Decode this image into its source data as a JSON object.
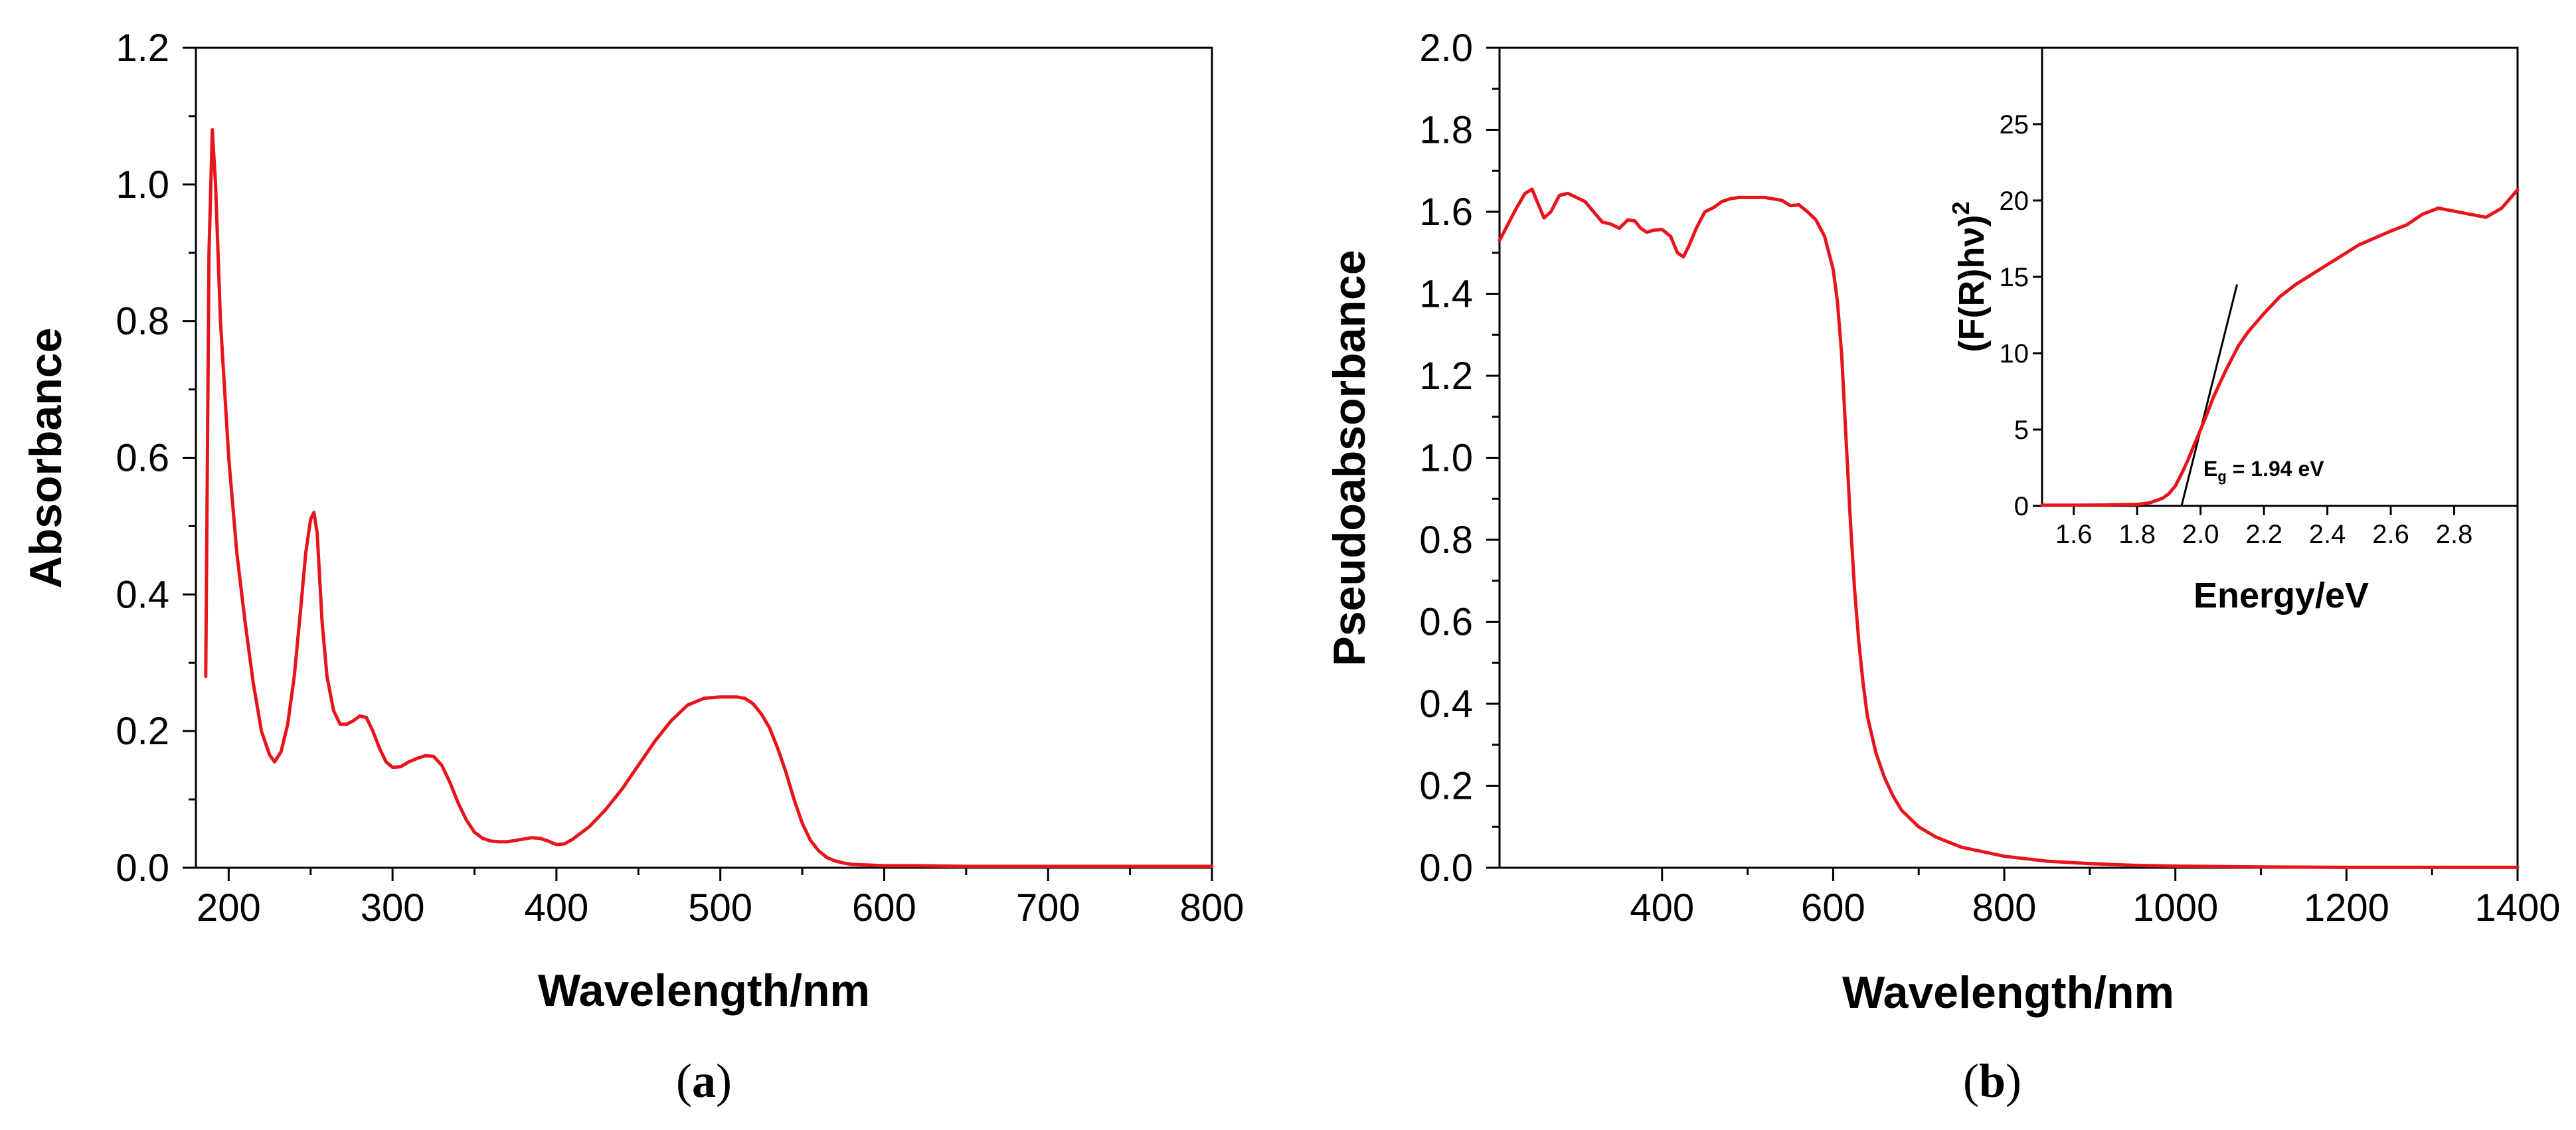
{
  "chart_data": [
    {
      "id": "a",
      "type": "line",
      "caption": "a",
      "title": "",
      "xlabel": "Wavelength/nm",
      "ylabel": "Absorbance",
      "xlim": [
        180,
        800
      ],
      "ylim": [
        0.0,
        1.2
      ],
      "xticks": [
        200,
        300,
        400,
        500,
        600,
        700,
        800
      ],
      "yticks": [
        0.0,
        0.2,
        0.4,
        0.6,
        0.8,
        1.0,
        1.2
      ],
      "xtick_labels": [
        "200",
        "300",
        "400",
        "500",
        "600",
        "700",
        "800"
      ],
      "ytick_labels": [
        "0.0",
        "0.2",
        "0.4",
        "0.6",
        "0.8",
        "1.0",
        "1.2"
      ],
      "grid": false,
      "series": [
        {
          "name": "Absorbance",
          "color": "#e8141b",
          "x": [
            186,
            188,
            190,
            192,
            195,
            200,
            205,
            210,
            215,
            220,
            225,
            228,
            232,
            236,
            240,
            244,
            247,
            250,
            252,
            254,
            257,
            260,
            264,
            268,
            272,
            276,
            280,
            284,
            288,
            292,
            296,
            300,
            305,
            310,
            315,
            320,
            325,
            330,
            335,
            340,
            345,
            350,
            355,
            360,
            365,
            370,
            375,
            380,
            385,
            390,
            395,
            400,
            405,
            410,
            420,
            430,
            440,
            450,
            460,
            470,
            480,
            490,
            500,
            510,
            515,
            520,
            525,
            530,
            535,
            540,
            545,
            550,
            555,
            560,
            565,
            570,
            575,
            580,
            590,
            600,
            620,
            650,
            700,
            750,
            800
          ],
          "y": [
            0.28,
            0.9,
            1.08,
            1.0,
            0.8,
            0.6,
            0.46,
            0.36,
            0.27,
            0.2,
            0.165,
            0.155,
            0.17,
            0.21,
            0.28,
            0.38,
            0.46,
            0.51,
            0.52,
            0.49,
            0.36,
            0.28,
            0.23,
            0.21,
            0.21,
            0.215,
            0.222,
            0.22,
            0.2,
            0.175,
            0.155,
            0.147,
            0.148,
            0.155,
            0.16,
            0.164,
            0.163,
            0.15,
            0.125,
            0.095,
            0.07,
            0.052,
            0.043,
            0.039,
            0.038,
            0.038,
            0.04,
            0.042,
            0.044,
            0.043,
            0.039,
            0.034,
            0.035,
            0.042,
            0.06,
            0.085,
            0.115,
            0.15,
            0.185,
            0.215,
            0.238,
            0.248,
            0.25,
            0.25,
            0.248,
            0.24,
            0.225,
            0.205,
            0.175,
            0.14,
            0.1,
            0.065,
            0.04,
            0.025,
            0.015,
            0.01,
            0.007,
            0.005,
            0.004,
            0.003,
            0.003,
            0.002,
            0.002,
            0.002,
            0.002
          ]
        }
      ]
    },
    {
      "id": "b",
      "type": "line",
      "caption": "b",
      "title": "",
      "xlabel": "Wavelength/nm",
      "ylabel": "Pseudoabsorbance",
      "xlim": [
        210,
        1400
      ],
      "ylim": [
        0.0,
        2.0
      ],
      "xticks": [
        400,
        600,
        800,
        1000,
        1200,
        1400
      ],
      "yticks": [
        0.0,
        0.2,
        0.4,
        0.6,
        0.8,
        1.0,
        1.2,
        1.4,
        1.6,
        1.8,
        2.0
      ],
      "xtick_labels": [
        "400",
        "600",
        "800",
        "1000",
        "1200",
        "1400"
      ],
      "ytick_labels": [
        "0.0",
        "0.2",
        "0.4",
        "0.6",
        "0.8",
        "1.0",
        "1.2",
        "1.4",
        "1.6",
        "1.8",
        "2.0"
      ],
      "grid": false,
      "series": [
        {
          "name": "Pseudoabsorbance",
          "color": "#e8141b",
          "x": [
            210,
            220,
            230,
            240,
            248,
            255,
            262,
            270,
            280,
            290,
            300,
            310,
            320,
            330,
            340,
            350,
            360,
            368,
            375,
            382,
            390,
            400,
            410,
            418,
            425,
            432,
            440,
            450,
            460,
            470,
            480,
            490,
            500,
            520,
            540,
            550,
            560,
            570,
            580,
            590,
            600,
            605,
            610,
            615,
            620,
            625,
            630,
            635,
            640,
            650,
            660,
            670,
            680,
            700,
            720,
            750,
            800,
            850,
            900,
            950,
            1000,
            1100,
            1200,
            1300,
            1400
          ],
          "y": [
            1.53,
            1.57,
            1.61,
            1.645,
            1.655,
            1.62,
            1.585,
            1.6,
            1.64,
            1.645,
            1.635,
            1.625,
            1.6,
            1.575,
            1.57,
            1.56,
            1.58,
            1.578,
            1.56,
            1.55,
            1.555,
            1.557,
            1.54,
            1.5,
            1.49,
            1.52,
            1.56,
            1.6,
            1.61,
            1.625,
            1.632,
            1.635,
            1.635,
            1.635,
            1.628,
            1.615,
            1.617,
            1.6,
            1.58,
            1.54,
            1.46,
            1.38,
            1.25,
            1.05,
            0.85,
            0.68,
            0.55,
            0.45,
            0.37,
            0.28,
            0.22,
            0.175,
            0.14,
            0.1,
            0.075,
            0.05,
            0.028,
            0.016,
            0.01,
            0.006,
            0.004,
            0.002,
            0.001,
            0.001,
            0.001
          ]
        }
      ],
      "inset": {
        "type": "line",
        "xlabel": "Energy/eV",
        "ylabel": "(F(R)hν)²",
        "xlim": [
          1.5,
          3.0
        ],
        "ylim": [
          0,
          30
        ],
        "xticks": [
          1.6,
          1.8,
          2.0,
          2.2,
          2.4,
          2.6,
          2.8
        ],
        "yticks": [
          0,
          5,
          10,
          15,
          20,
          25
        ],
        "xtick_labels": [
          "1.6",
          "1.8",
          "2.0",
          "2.2",
          "2.4",
          "2.6",
          "2.8"
        ],
        "ytick_labels": [
          "0",
          "5",
          "10",
          "15",
          "20",
          "25"
        ],
        "annotation": "Eg = 1.94 eV",
        "band_gap_ev": 1.94,
        "fit_line": {
          "x": [
            1.94,
            2.115
          ],
          "y": [
            0,
            14.5
          ]
        },
        "series": [
          {
            "name": "(F(R)hν)²",
            "color": "#e8141b",
            "x": [
              1.5,
              1.6,
              1.7,
              1.8,
              1.84,
              1.88,
              1.9,
              1.92,
              1.94,
              1.96,
              1.98,
              2.0,
              2.02,
              2.04,
              2.06,
              2.08,
              2.1,
              2.12,
              2.15,
              2.2,
              2.25,
              2.3,
              2.4,
              2.5,
              2.6,
              2.65,
              2.7,
              2.75,
              2.8,
              2.85,
              2.9,
              2.95,
              3.0
            ],
            "y": [
              0.05,
              0.05,
              0.06,
              0.1,
              0.2,
              0.5,
              0.8,
              1.3,
              2.1,
              3.0,
              4.0,
              5.0,
              6.0,
              7.1,
              8.0,
              8.9,
              9.7,
              10.5,
              11.4,
              12.6,
              13.7,
              14.5,
              15.8,
              17.1,
              18.0,
              18.4,
              19.1,
              19.5,
              19.3,
              19.1,
              18.9,
              19.5,
              20.7
            ]
          }
        ]
      }
    }
  ],
  "labels": {
    "eg_base": "E",
    "eg_sub": "g",
    "eg_value": " = 1.94 eV",
    "inset_ylabel_main": "(F(R)hν)",
    "inset_ylabel_sup": "2",
    "caption_a_open": "(",
    "caption_a_letter": "a",
    "caption_a_close": ")",
    "caption_b_open": "(",
    "caption_b_letter": "b",
    "caption_b_close": ")"
  },
  "colors": {
    "curve": "#e8141b",
    "axis": "#000000",
    "fit_line": "#000000",
    "background": "#ffffff"
  }
}
